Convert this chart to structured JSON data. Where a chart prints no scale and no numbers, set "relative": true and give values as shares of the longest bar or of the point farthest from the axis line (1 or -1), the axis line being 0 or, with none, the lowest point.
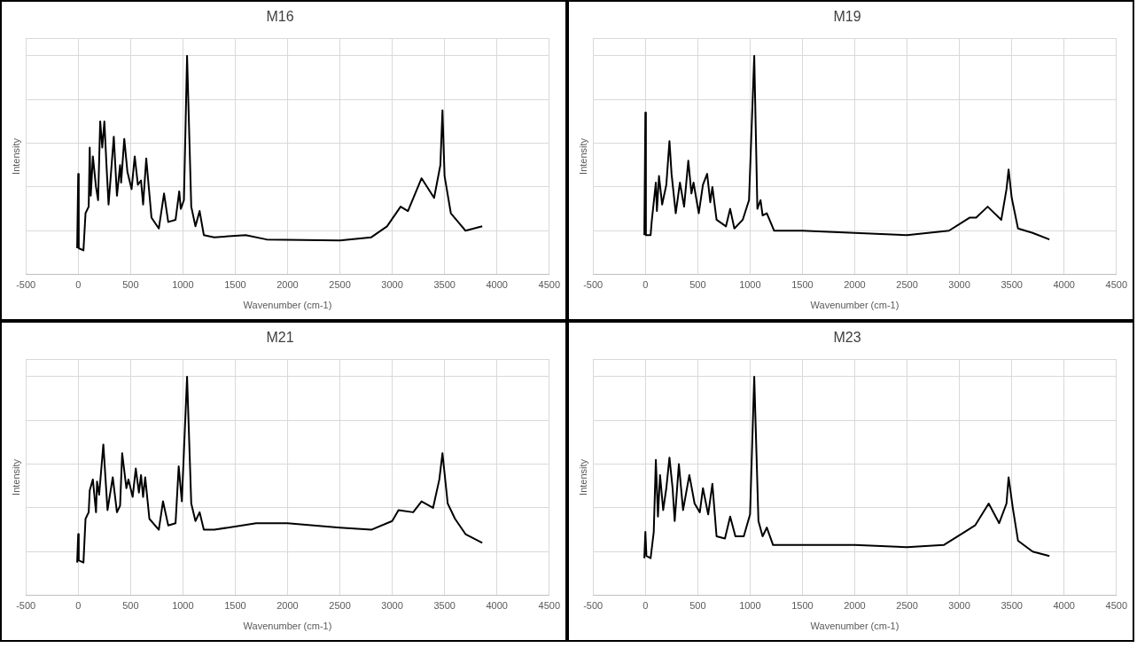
{
  "chart_data": [
    {
      "type": "line",
      "title": "M16",
      "xlabel": "Wavenumber (cm-1)",
      "ylabel": "Intensity",
      "color": "#000000",
      "relative": true,
      "grid": true,
      "marker": "none",
      "xlim": [
        -500,
        4500
      ],
      "xticks": [
        -500,
        0,
        500,
        1000,
        1500,
        2000,
        2500,
        3000,
        3500,
        4000,
        4500
      ],
      "x": [
        -10,
        0,
        5,
        50,
        70,
        100,
        110,
        120,
        140,
        170,
        190,
        210,
        230,
        250,
        270,
        290,
        340,
        370,
        400,
        410,
        440,
        470,
        510,
        540,
        570,
        600,
        620,
        650,
        700,
        770,
        820,
        860,
        930,
        965,
        980,
        1010,
        1040,
        1080,
        1120,
        1160,
        1200,
        1300,
        1600,
        1800,
        2500,
        2800,
        2950,
        3080,
        3150,
        3280,
        3400,
        3460,
        3480,
        3500,
        3560,
        3700,
        3860
      ],
      "values": [
        0.12,
        0.46,
        0.12,
        0.11,
        0.28,
        0.31,
        0.58,
        0.36,
        0.54,
        0.4,
        0.34,
        0.7,
        0.58,
        0.7,
        0.5,
        0.32,
        0.63,
        0.36,
        0.5,
        0.42,
        0.62,
        0.47,
        0.39,
        0.54,
        0.41,
        0.43,
        0.32,
        0.53,
        0.26,
        0.21,
        0.37,
        0.24,
        0.25,
        0.38,
        0.3,
        0.34,
        1.0,
        0.31,
        0.22,
        0.29,
        0.18,
        0.17,
        0.18,
        0.16,
        0.155,
        0.17,
        0.22,
        0.31,
        0.29,
        0.44,
        0.35,
        0.5,
        0.75,
        0.45,
        0.28,
        0.2,
        0.22
      ]
    },
    {
      "type": "line",
      "title": "M19",
      "xlabel": "Wavenumber (cm-1)",
      "ylabel": "Intensity",
      "color": "#000000",
      "relative": true,
      "grid": true,
      "marker": "none",
      "xlim": [
        -500,
        4500
      ],
      "xticks": [
        -500,
        0,
        500,
        1000,
        1500,
        2000,
        2500,
        3000,
        3500,
        4000,
        4500
      ],
      "x": [
        -10,
        0,
        5,
        50,
        60,
        100,
        110,
        130,
        160,
        200,
        230,
        250,
        290,
        330,
        370,
        410,
        440,
        460,
        510,
        550,
        590,
        620,
        640,
        680,
        770,
        810,
        850,
        930,
        990,
        1040,
        1070,
        1100,
        1120,
        1160,
        1230,
        1500,
        2000,
        2500,
        2900,
        3100,
        3160,
        3270,
        3400,
        3450,
        3470,
        3500,
        3560,
        3700,
        3860
      ],
      "values": [
        0.18,
        0.74,
        0.18,
        0.18,
        0.24,
        0.42,
        0.29,
        0.45,
        0.32,
        0.41,
        0.61,
        0.46,
        0.28,
        0.42,
        0.31,
        0.52,
        0.37,
        0.42,
        0.28,
        0.41,
        0.46,
        0.33,
        0.4,
        0.25,
        0.22,
        0.3,
        0.21,
        0.25,
        0.34,
        1.0,
        0.3,
        0.34,
        0.27,
        0.28,
        0.2,
        0.2,
        0.19,
        0.18,
        0.2,
        0.26,
        0.26,
        0.31,
        0.25,
        0.39,
        0.48,
        0.35,
        0.21,
        0.19,
        0.16
      ]
    },
    {
      "type": "line",
      "title": "M21",
      "xlabel": "Wavenumber (cm-1)",
      "ylabel": "Intensity",
      "color": "#000000",
      "relative": true,
      "grid": true,
      "marker": "none",
      "xlim": [
        -500,
        4500
      ],
      "xticks": [
        -500,
        0,
        500,
        1000,
        1500,
        2000,
        2500,
        3000,
        3500,
        4000,
        4500
      ],
      "x": [
        -10,
        0,
        5,
        50,
        70,
        100,
        110,
        140,
        170,
        180,
        200,
        240,
        280,
        330,
        370,
        400,
        420,
        460,
        480,
        520,
        550,
        580,
        600,
        620,
        640,
        680,
        770,
        810,
        860,
        930,
        960,
        990,
        1040,
        1080,
        1120,
        1160,
        1200,
        1300,
        1700,
        2000,
        2500,
        2800,
        3000,
        3060,
        3200,
        3280,
        3390,
        3450,
        3480,
        3530,
        3600,
        3700,
        3860
      ],
      "values": [
        0.15,
        0.28,
        0.16,
        0.15,
        0.35,
        0.38,
        0.48,
        0.53,
        0.38,
        0.52,
        0.46,
        0.69,
        0.39,
        0.54,
        0.38,
        0.41,
        0.65,
        0.49,
        0.53,
        0.45,
        0.58,
        0.47,
        0.55,
        0.45,
        0.54,
        0.35,
        0.3,
        0.43,
        0.32,
        0.33,
        0.59,
        0.43,
        1.0,
        0.42,
        0.34,
        0.38,
        0.3,
        0.3,
        0.33,
        0.33,
        0.31,
        0.3,
        0.34,
        0.39,
        0.38,
        0.43,
        0.4,
        0.53,
        0.65,
        0.42,
        0.35,
        0.28,
        0.24
      ]
    },
    {
      "type": "line",
      "title": "M23",
      "xlabel": "Wavenumber (cm-1)",
      "ylabel": "Intensity",
      "color": "#000000",
      "relative": true,
      "grid": true,
      "marker": "none",
      "xlim": [
        -500,
        4500
      ],
      "xticks": [
        -500,
        0,
        500,
        1000,
        1500,
        2000,
        2500,
        3000,
        3500,
        4000,
        4500
      ],
      "x": [
        -10,
        0,
        10,
        50,
        80,
        100,
        120,
        140,
        170,
        200,
        230,
        260,
        280,
        320,
        360,
        390,
        420,
        470,
        520,
        550,
        600,
        640,
        680,
        760,
        810,
        860,
        940,
        1000,
        1040,
        1080,
        1120,
        1160,
        1220,
        1500,
        2000,
        2500,
        2850,
        3050,
        3150,
        3280,
        3380,
        3450,
        3470,
        3510,
        3560,
        3700,
        3860
      ],
      "values": [
        0.17,
        0.29,
        0.18,
        0.17,
        0.29,
        0.62,
        0.36,
        0.55,
        0.39,
        0.49,
        0.63,
        0.49,
        0.34,
        0.6,
        0.39,
        0.47,
        0.55,
        0.42,
        0.38,
        0.49,
        0.37,
        0.51,
        0.27,
        0.26,
        0.36,
        0.27,
        0.27,
        0.37,
        1.0,
        0.34,
        0.27,
        0.31,
        0.23,
        0.23,
        0.23,
        0.22,
        0.23,
        0.29,
        0.32,
        0.42,
        0.33,
        0.42,
        0.54,
        0.4,
        0.25,
        0.2,
        0.18
      ]
    }
  ]
}
